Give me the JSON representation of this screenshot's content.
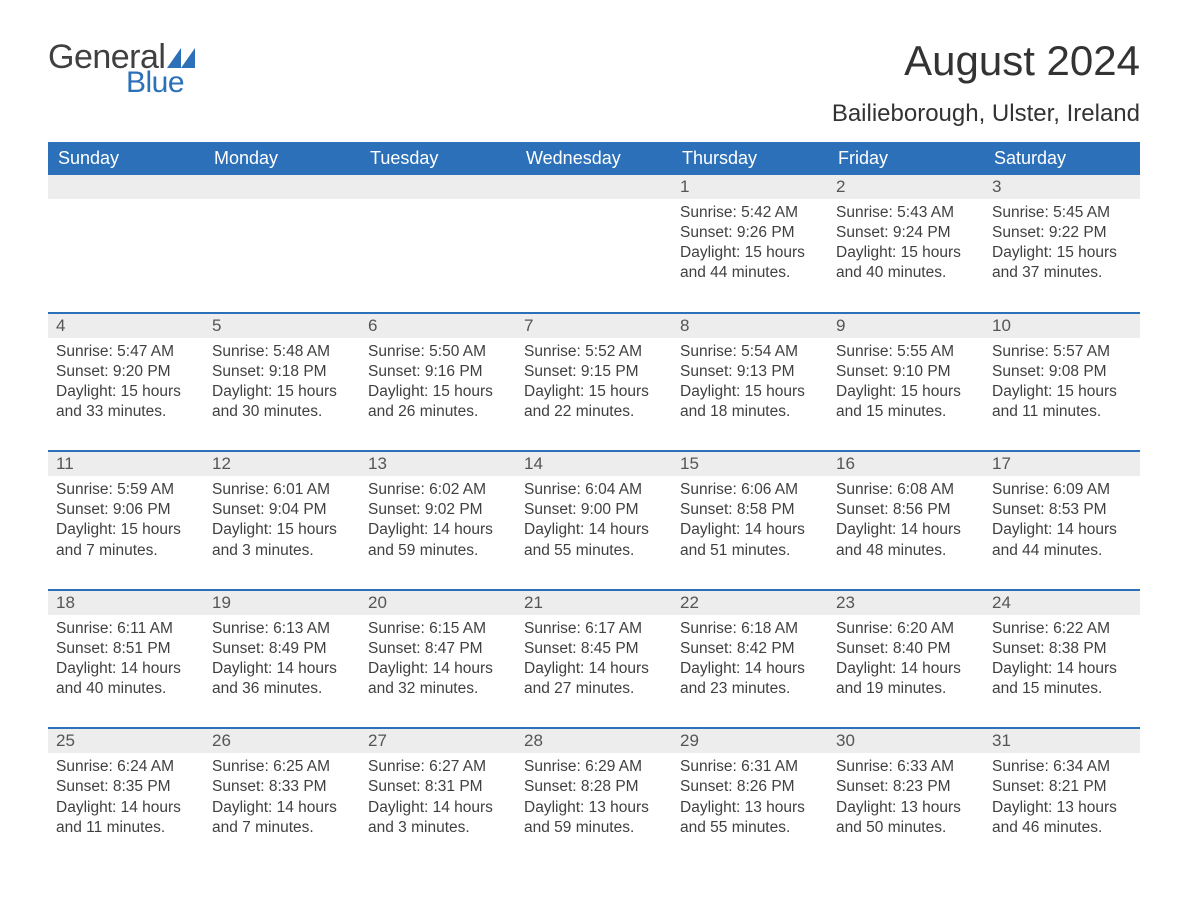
{
  "logo": {
    "text1": "General",
    "text2": "Blue",
    "flag_color": "#2b70b8"
  },
  "title": "August 2024",
  "location": "Bailieborough, Ulster, Ireland",
  "colors": {
    "header_bg": "#2b70b8",
    "header_text": "#ffffff",
    "daynum_bg": "#ededed",
    "row_border": "#2b70b8",
    "body_text": "#404040",
    "page_bg": "#ffffff"
  },
  "weekdays": [
    "Sunday",
    "Monday",
    "Tuesday",
    "Wednesday",
    "Thursday",
    "Friday",
    "Saturday"
  ],
  "weeks": [
    [
      null,
      null,
      null,
      null,
      {
        "n": "1",
        "sr": "5:42 AM",
        "ss": "9:26 PM",
        "dl": "15 hours and 44 minutes."
      },
      {
        "n": "2",
        "sr": "5:43 AM",
        "ss": "9:24 PM",
        "dl": "15 hours and 40 minutes."
      },
      {
        "n": "3",
        "sr": "5:45 AM",
        "ss": "9:22 PM",
        "dl": "15 hours and 37 minutes."
      }
    ],
    [
      {
        "n": "4",
        "sr": "5:47 AM",
        "ss": "9:20 PM",
        "dl": "15 hours and 33 minutes."
      },
      {
        "n": "5",
        "sr": "5:48 AM",
        "ss": "9:18 PM",
        "dl": "15 hours and 30 minutes."
      },
      {
        "n": "6",
        "sr": "5:50 AM",
        "ss": "9:16 PM",
        "dl": "15 hours and 26 minutes."
      },
      {
        "n": "7",
        "sr": "5:52 AM",
        "ss": "9:15 PM",
        "dl": "15 hours and 22 minutes."
      },
      {
        "n": "8",
        "sr": "5:54 AM",
        "ss": "9:13 PM",
        "dl": "15 hours and 18 minutes."
      },
      {
        "n": "9",
        "sr": "5:55 AM",
        "ss": "9:10 PM",
        "dl": "15 hours and 15 minutes."
      },
      {
        "n": "10",
        "sr": "5:57 AM",
        "ss": "9:08 PM",
        "dl": "15 hours and 11 minutes."
      }
    ],
    [
      {
        "n": "11",
        "sr": "5:59 AM",
        "ss": "9:06 PM",
        "dl": "15 hours and 7 minutes."
      },
      {
        "n": "12",
        "sr": "6:01 AM",
        "ss": "9:04 PM",
        "dl": "15 hours and 3 minutes."
      },
      {
        "n": "13",
        "sr": "6:02 AM",
        "ss": "9:02 PM",
        "dl": "14 hours and 59 minutes."
      },
      {
        "n": "14",
        "sr": "6:04 AM",
        "ss": "9:00 PM",
        "dl": "14 hours and 55 minutes."
      },
      {
        "n": "15",
        "sr": "6:06 AM",
        "ss": "8:58 PM",
        "dl": "14 hours and 51 minutes."
      },
      {
        "n": "16",
        "sr": "6:08 AM",
        "ss": "8:56 PM",
        "dl": "14 hours and 48 minutes."
      },
      {
        "n": "17",
        "sr": "6:09 AM",
        "ss": "8:53 PM",
        "dl": "14 hours and 44 minutes."
      }
    ],
    [
      {
        "n": "18",
        "sr": "6:11 AM",
        "ss": "8:51 PM",
        "dl": "14 hours and 40 minutes."
      },
      {
        "n": "19",
        "sr": "6:13 AM",
        "ss": "8:49 PM",
        "dl": "14 hours and 36 minutes."
      },
      {
        "n": "20",
        "sr": "6:15 AM",
        "ss": "8:47 PM",
        "dl": "14 hours and 32 minutes."
      },
      {
        "n": "21",
        "sr": "6:17 AM",
        "ss": "8:45 PM",
        "dl": "14 hours and 27 minutes."
      },
      {
        "n": "22",
        "sr": "6:18 AM",
        "ss": "8:42 PM",
        "dl": "14 hours and 23 minutes."
      },
      {
        "n": "23",
        "sr": "6:20 AM",
        "ss": "8:40 PM",
        "dl": "14 hours and 19 minutes."
      },
      {
        "n": "24",
        "sr": "6:22 AM",
        "ss": "8:38 PM",
        "dl": "14 hours and 15 minutes."
      }
    ],
    [
      {
        "n": "25",
        "sr": "6:24 AM",
        "ss": "8:35 PM",
        "dl": "14 hours and 11 minutes."
      },
      {
        "n": "26",
        "sr": "6:25 AM",
        "ss": "8:33 PM",
        "dl": "14 hours and 7 minutes."
      },
      {
        "n": "27",
        "sr": "6:27 AM",
        "ss": "8:31 PM",
        "dl": "14 hours and 3 minutes."
      },
      {
        "n": "28",
        "sr": "6:29 AM",
        "ss": "8:28 PM",
        "dl": "13 hours and 59 minutes."
      },
      {
        "n": "29",
        "sr": "6:31 AM",
        "ss": "8:26 PM",
        "dl": "13 hours and 55 minutes."
      },
      {
        "n": "30",
        "sr": "6:33 AM",
        "ss": "8:23 PM",
        "dl": "13 hours and 50 minutes."
      },
      {
        "n": "31",
        "sr": "6:34 AM",
        "ss": "8:21 PM",
        "dl": "13 hours and 46 minutes."
      }
    ]
  ],
  "labels": {
    "sunrise": "Sunrise: ",
    "sunset": "Sunset: ",
    "daylight": "Daylight: "
  }
}
